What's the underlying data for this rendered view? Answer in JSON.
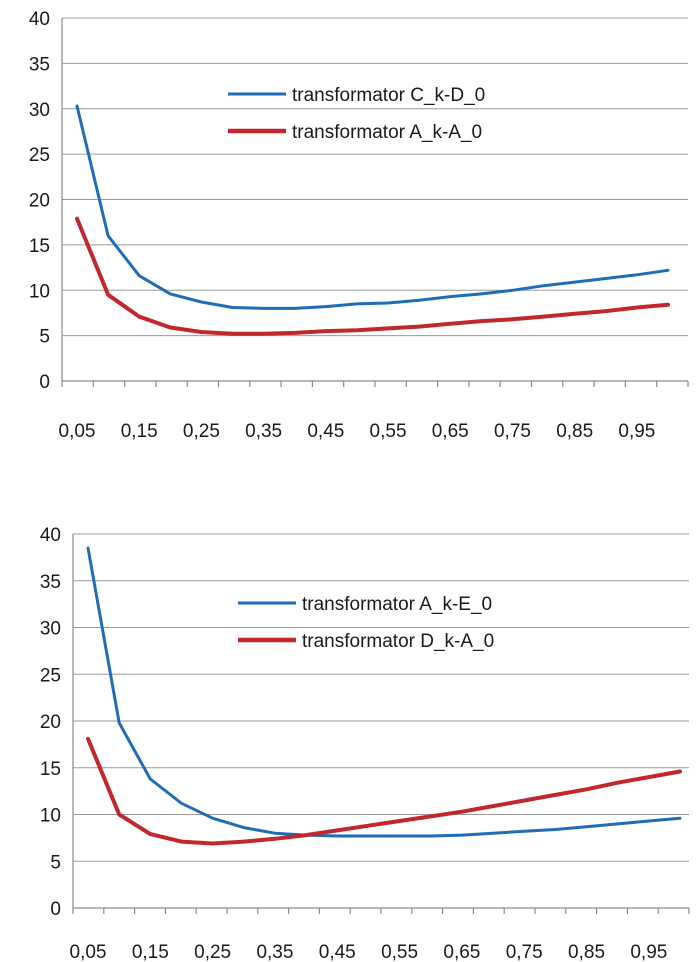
{
  "chart_data": [
    {
      "type": "line",
      "title": "",
      "xlabel": "",
      "ylabel": "",
      "ylim": [
        0,
        40
      ],
      "yticks": [
        0,
        5,
        10,
        15,
        20,
        25,
        30,
        35,
        40
      ],
      "x": [
        0.05,
        0.1,
        0.15,
        0.2,
        0.25,
        0.3,
        0.35,
        0.4,
        0.45,
        0.5,
        0.55,
        0.6,
        0.65,
        0.7,
        0.75,
        0.8,
        0.85,
        0.9,
        0.95,
        1.0
      ],
      "xtick_labels": [
        "0,05",
        "0,15",
        "0,25",
        "0,35",
        "0,45",
        "0,55",
        "0,65",
        "0,75",
        "0,85",
        "0,95"
      ],
      "grid": true,
      "legend_position": "upper-center",
      "series": [
        {
          "name": "transformator C_k-D_0",
          "color": "#1f6db5",
          "values": [
            30.3,
            16.0,
            11.6,
            9.6,
            8.7,
            8.1,
            8.0,
            8.0,
            8.2,
            8.5,
            8.6,
            8.9,
            9.3,
            9.6,
            10.0,
            10.5,
            10.9,
            11.3,
            11.7,
            12.2
          ]
        },
        {
          "name": "transformator A_k-A_0",
          "color": "#c0282d",
          "values": [
            17.9,
            9.5,
            7.1,
            5.9,
            5.4,
            5.2,
            5.2,
            5.3,
            5.5,
            5.6,
            5.8,
            6.0,
            6.3,
            6.6,
            6.8,
            7.1,
            7.4,
            7.7,
            8.1,
            8.4
          ]
        }
      ]
    },
    {
      "type": "line",
      "title": "",
      "xlabel": "",
      "ylabel": "",
      "ylim": [
        0,
        40
      ],
      "yticks": [
        0,
        5,
        10,
        15,
        20,
        25,
        30,
        35,
        40
      ],
      "x": [
        0.05,
        0.1,
        0.15,
        0.2,
        0.25,
        0.3,
        0.35,
        0.4,
        0.45,
        0.5,
        0.55,
        0.6,
        0.65,
        0.7,
        0.75,
        0.8,
        0.85,
        0.9,
        0.95,
        1.0
      ],
      "xtick_labels": [
        "0,05",
        "0,15",
        "0,25",
        "0,35",
        "0,45",
        "0,55",
        "0,65",
        "0,75",
        "0,85",
        "0,95"
      ],
      "grid": true,
      "legend_position": "upper-center",
      "series": [
        {
          "name": "transformator A_k-E_0",
          "color": "#1f6db5",
          "values": [
            38.5,
            19.8,
            13.8,
            11.2,
            9.6,
            8.6,
            8.0,
            7.8,
            7.7,
            7.7,
            7.7,
            7.7,
            7.8,
            8.0,
            8.2,
            8.4,
            8.7,
            9.0,
            9.3,
            9.6
          ]
        },
        {
          "name": "transformator D_k-A_0",
          "color": "#c0282d",
          "values": [
            18.1,
            10.0,
            7.9,
            7.1,
            6.9,
            7.1,
            7.4,
            7.8,
            8.3,
            8.8,
            9.3,
            9.8,
            10.3,
            10.9,
            11.5,
            12.1,
            12.7,
            13.4,
            14.0,
            14.6
          ]
        }
      ]
    }
  ]
}
